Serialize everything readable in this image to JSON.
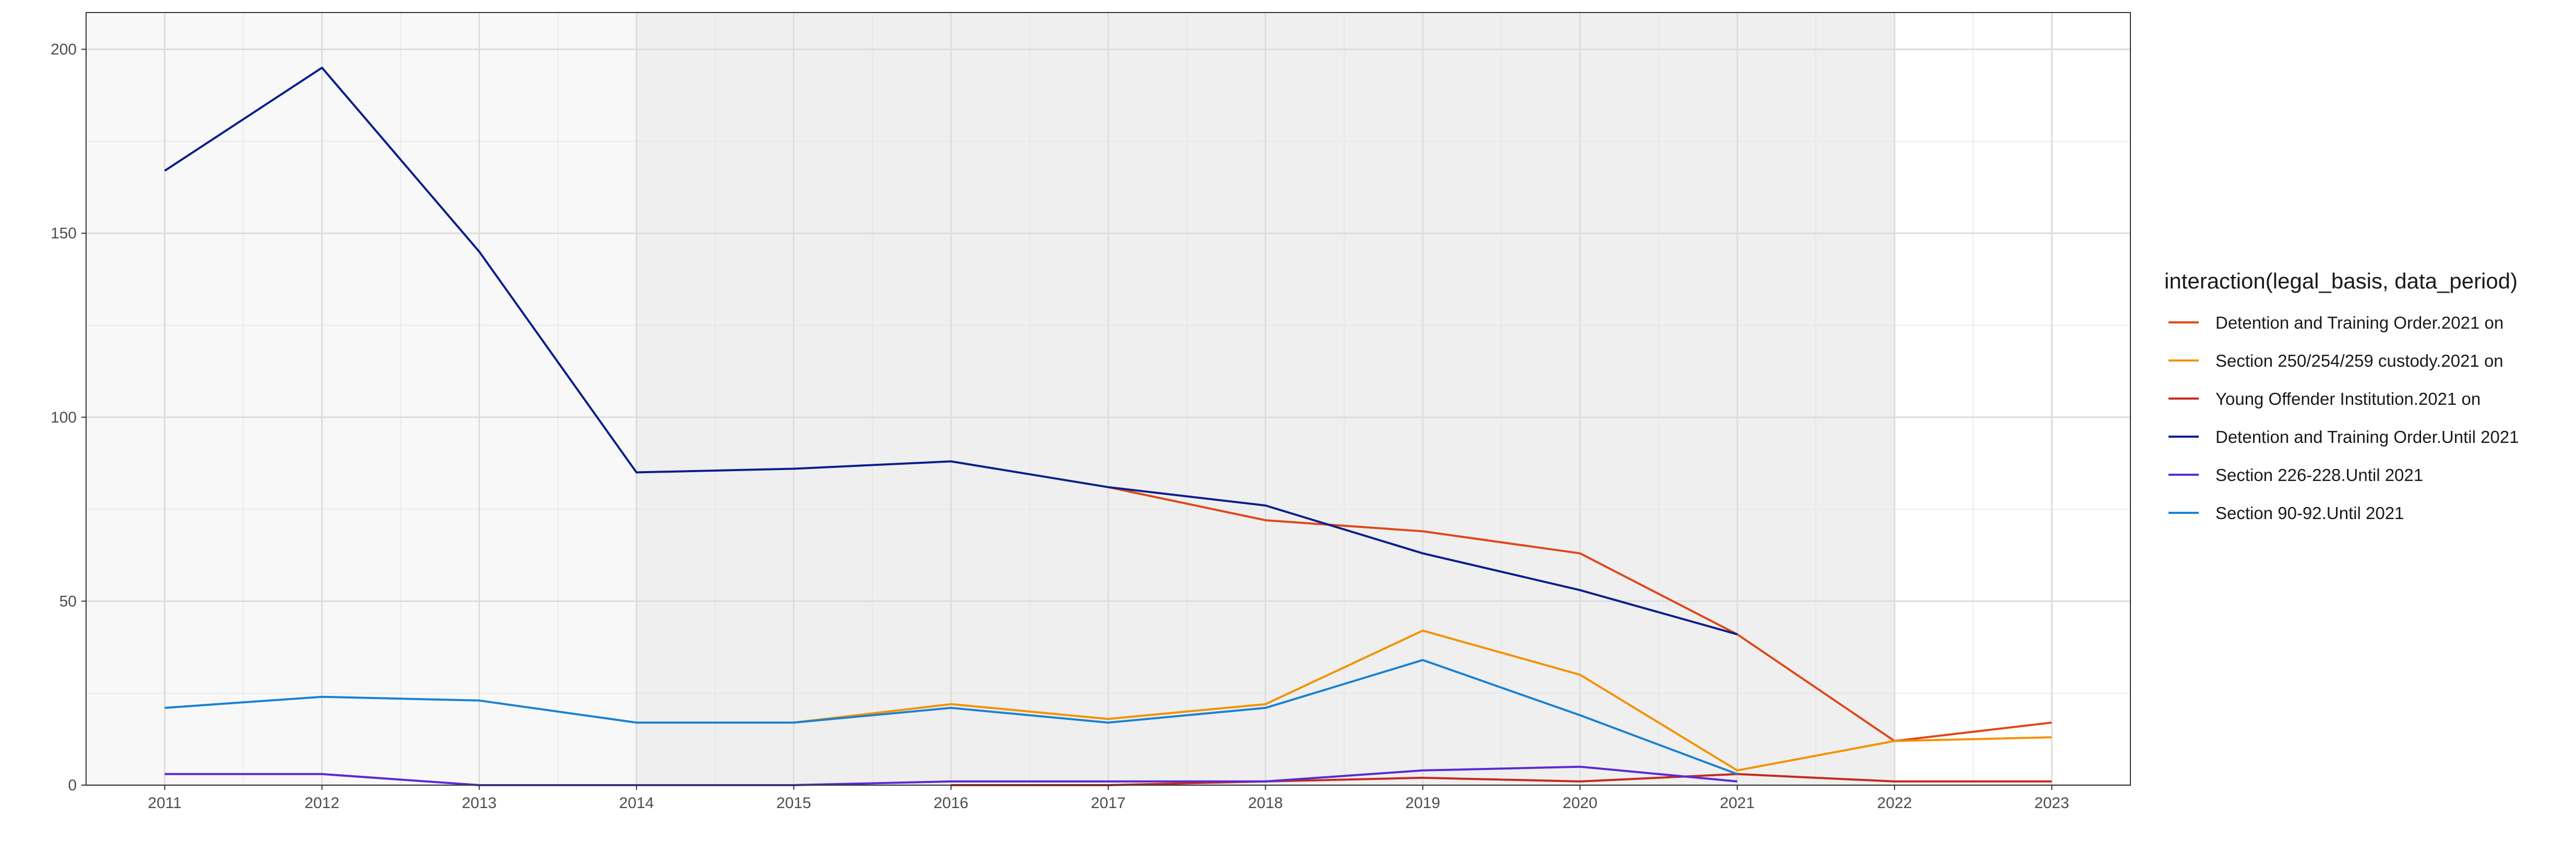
{
  "chart_data": {
    "type": "line",
    "title": "",
    "xlabel": "",
    "ylabel": "",
    "xlim": [
      2010.5,
      2023.5
    ],
    "ylim": [
      0,
      210
    ],
    "x_ticks": [
      2011,
      2012,
      2013,
      2014,
      2015,
      2016,
      2017,
      2018,
      2019,
      2020,
      2021,
      2022,
      2023
    ],
    "y_ticks": [
      0,
      50,
      100,
      150,
      200
    ],
    "grid": true,
    "shaded_regions": [
      {
        "from": 2010.5,
        "to": 2014,
        "color": "#f8f8f8"
      },
      {
        "from": 2014,
        "to": 2022,
        "color": "#efefef"
      }
    ],
    "legend": {
      "position": "right",
      "title": "interaction(legal_basis, data_period)"
    },
    "series": [
      {
        "name": "Detention and Training Order.2021 on",
        "color": "#e0471a",
        "x": [
          2017,
          2018,
          2019,
          2020,
          2021,
          2022,
          2023
        ],
        "values": [
          81,
          72,
          69,
          63,
          41,
          12,
          17
        ]
      },
      {
        "name": "Section 250/254/259 custody.2021 on",
        "color": "#f39200",
        "x": [
          2015,
          2016,
          2017,
          2018,
          2019,
          2020,
          2021,
          2022,
          2023
        ],
        "values": [
          17,
          22,
          18,
          22,
          42,
          30,
          4,
          12,
          13
        ]
      },
      {
        "name": "Young Offender Institution.2021 on",
        "color": "#c8281e",
        "x": [
          2016,
          2017,
          2018,
          2019,
          2020,
          2021,
          2022,
          2023
        ],
        "values": [
          0,
          0,
          1,
          2,
          1,
          3,
          1,
          1
        ]
      },
      {
        "name": "Detention and Training Order.Until 2021",
        "color": "#0a1e8c",
        "x": [
          2011,
          2012,
          2013,
          2014,
          2015,
          2016,
          2017,
          2018,
          2019,
          2020,
          2021
        ],
        "values": [
          167,
          195,
          145,
          85,
          86,
          88,
          81,
          76,
          63,
          53,
          41
        ]
      },
      {
        "name": "Section 226-228.Until 2021",
        "color": "#5a2ad6",
        "x": [
          2011,
          2012,
          2013,
          2014,
          2015,
          2016,
          2017,
          2018,
          2019,
          2020,
          2021
        ],
        "values": [
          3,
          3,
          0,
          0,
          0,
          1,
          1,
          1,
          4,
          5,
          1
        ]
      },
      {
        "name": "Section 90-92.Until 2021",
        "color": "#1a82d2",
        "x": [
          2011,
          2012,
          2013,
          2014,
          2015,
          2016,
          2017,
          2018,
          2019,
          2020,
          2021
        ],
        "values": [
          21,
          24,
          23,
          17,
          17,
          21,
          17,
          21,
          34,
          19,
          3
        ]
      }
    ]
  }
}
